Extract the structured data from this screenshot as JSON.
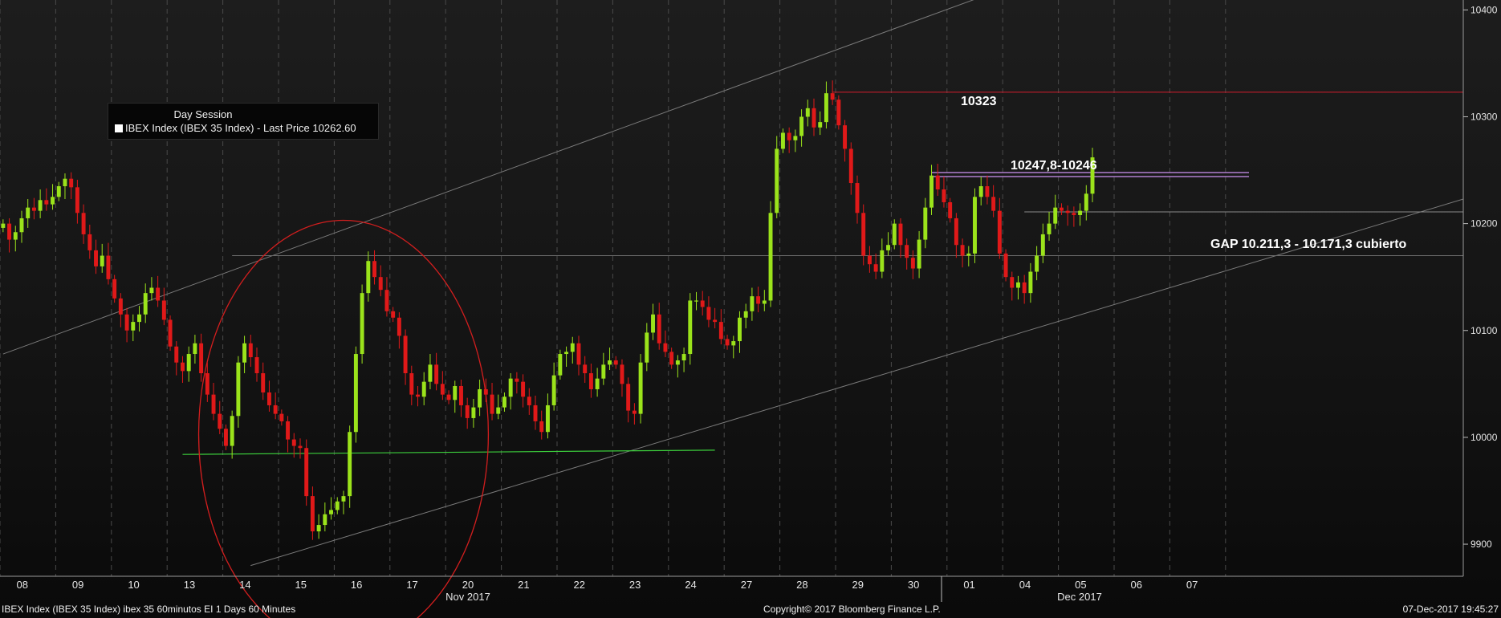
{
  "legend": {
    "session": "Day Session",
    "series": "IBEX Index (IBEX 35 Index) - Last Price",
    "last_price": "10262.60"
  },
  "footer": {
    "left": "IBEX Index (IBEX 35 Index) ibex 35 60minutos EI 1 Days 60 Minutes",
    "center": "Copyright© 2017 Bloomberg Finance L.P.",
    "right": "07-Dec-2017 19:45:27"
  },
  "annotations": {
    "high": "10323",
    "resistance": "10247,8-10246",
    "gap": "GAP 10.211,3 - 10.171,3 cubierto"
  },
  "colors": {
    "up": "#9be31b",
    "down": "#e01919",
    "resistance_line": "#d21e2d",
    "band_line": "#b07fd0",
    "support_line": "#3ccf3c",
    "channel_line": "#7a7a7a",
    "circle": "#d21e1e",
    "grid": "#4a4a4a"
  },
  "chart_data": {
    "type": "candlestick",
    "ylim": [
      9882,
      10404
    ],
    "y_ticks": [
      9900,
      10000,
      10100,
      10200,
      10300,
      10400
    ],
    "x_tick_labels": [
      "08",
      "09",
      "10",
      "13",
      "14",
      "15",
      "16",
      "17",
      "20",
      "21",
      "22",
      "23",
      "24",
      "27",
      "28",
      "29",
      "30",
      "01",
      "04",
      "05",
      "06",
      "07"
    ],
    "month_labels": [
      "Nov 2017",
      "Dec 2017"
    ],
    "candles_per_day": 9,
    "closes": [
      10200,
      10185,
      10192,
      10205,
      10215,
      10212,
      10222,
      10218,
      10225,
      10235,
      10242,
      10234,
      10210,
      10190,
      10175,
      10160,
      10170,
      10148,
      10130,
      10115,
      10100,
      10108,
      10115,
      10135,
      10140,
      10128,
      10110,
      10085,
      10070,
      10062,
      10078,
      10088,
      10060,
      10040,
      10022,
      10008,
      9992,
      10020,
      10070,
      10088,
      10075,
      10060,
      10042,
      10030,
      10022,
      10015,
      9998,
      9992,
      9990,
      9945,
      9912,
      9918,
      9928,
      9932,
      9940,
      9945,
      10005,
      10078,
      10135,
      10165,
      10150,
      10138,
      10118,
      10112,
      10095,
      10060,
      10040,
      10038,
      10052,
      10068,
      10050,
      10040,
      10035,
      10048,
      10030,
      10018,
      10028,
      10045,
      10040,
      10022,
      10028,
      10038,
      10055,
      10052,
      10038,
      10030,
      10015,
      10005,
      10030,
      10058,
      10078,
      10080,
      10088,
      10068,
      10060,
      10045,
      10055,
      10068,
      10072,
      10068,
      10050,
      10025,
      10022,
      10070,
      10098,
      10115,
      10088,
      10080,
      10068,
      10072,
      10078,
      10128,
      10128,
      10122,
      10110,
      10108,
      10092,
      10086,
      10090,
      10112,
      10118,
      10132,
      10125,
      10128,
      10210,
      10270,
      10285,
      10278,
      10282,
      10300,
      10308,
      10290,
      10295,
      10322,
      10316,
      10292,
      10270,
      10238,
      10210,
      10170,
      10162,
      10155,
      10175,
      10180,
      10200,
      10180,
      10168,
      10158,
      10185,
      10215,
      10245,
      10232,
      10220,
      10205,
      10180,
      10170,
      10172,
      10225,
      10235,
      10225,
      10212,
      10172,
      10150,
      10140,
      10145,
      10135,
      10155,
      10170,
      10190,
      10200,
      10215,
      10212,
      10210,
      10208,
      10212,
      10228,
      10262
    ]
  }
}
